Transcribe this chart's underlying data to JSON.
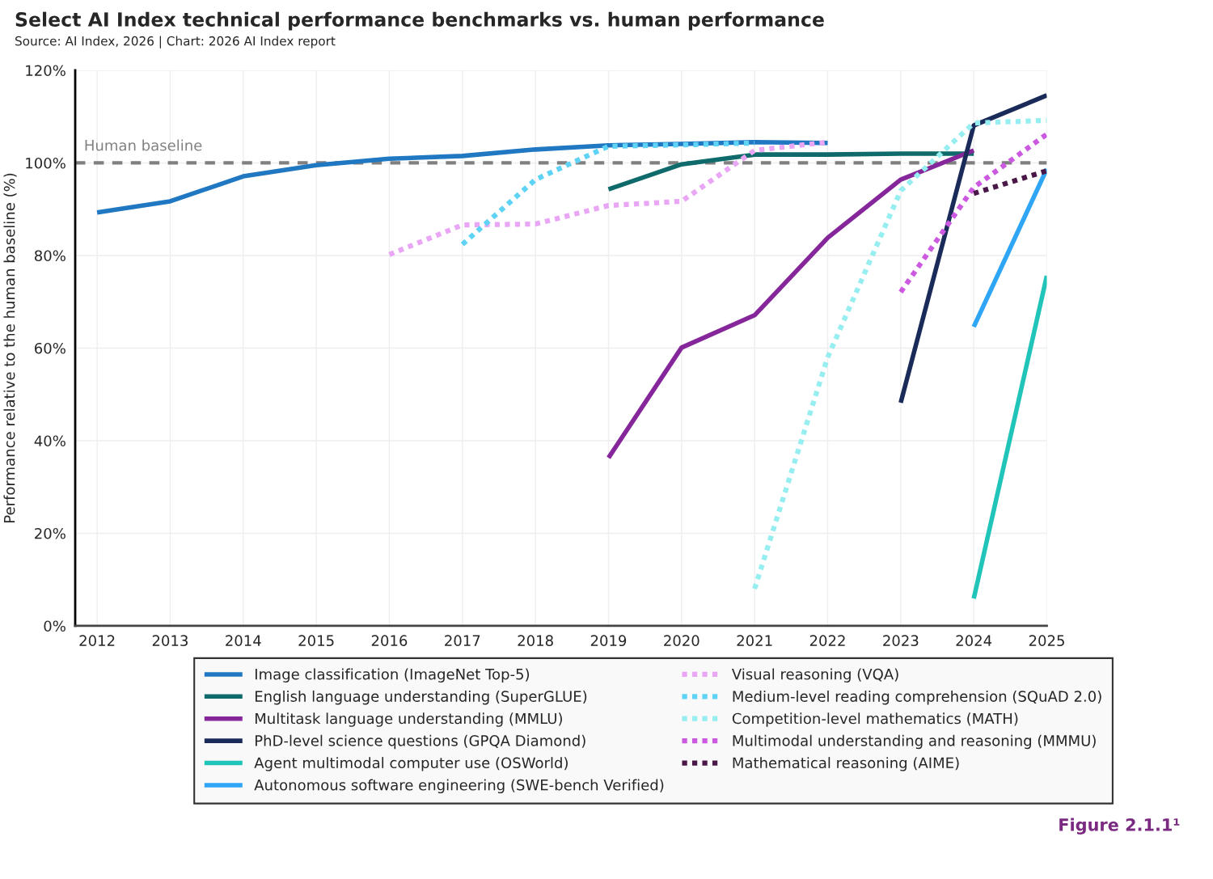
{
  "chart_data": {
    "type": "line",
    "title": "Select AI Index technical performance benchmarks vs. human performance",
    "subtitle": "Source: AI Index, 2026 | Chart: 2026 AI Index report",
    "ylabel": "Performance relative to the human baseline (%)",
    "x": [
      2012,
      2013,
      2014,
      2015,
      2016,
      2017,
      2018,
      2019,
      2020,
      2021,
      2022,
      2023,
      2024,
      2025
    ],
    "xlim": [
      2011.7,
      2025
    ],
    "xticks": [
      2012,
      2013,
      2014,
      2015,
      2016,
      2017,
      2018,
      2019,
      2020,
      2021,
      2022,
      2023,
      2024,
      2025
    ],
    "ylim": [
      0,
      120
    ],
    "yticks": [
      {
        "value": 0,
        "label": "0%"
      },
      {
        "value": 20,
        "label": "20%"
      },
      {
        "value": 40,
        "label": "40%"
      },
      {
        "value": 60,
        "label": "60%"
      },
      {
        "value": 80,
        "label": "80%"
      },
      {
        "value": 100,
        "label": "100%"
      },
      {
        "value": 120,
        "label": "120%"
      }
    ],
    "grid": true,
    "legend": "bottom",
    "marker": "none",
    "ref_lines": [
      {
        "axis": "y",
        "value": 100,
        "label": "Human baseline",
        "color": "#808080",
        "line_style": "dashed"
      }
    ],
    "annotations": [
      "Figure 2.1.1¹"
    ],
    "series": [
      {
        "name": "Image classification (ImageNet Top-5)",
        "color": "#1f78c1",
        "line_style": "solid",
        "values": [
          89.3,
          91.7,
          97.1,
          99.5,
          100.9,
          101.5,
          102.9,
          103.8,
          104.1,
          104.5,
          104.3,
          null,
          null,
          null
        ]
      },
      {
        "name": "English language understanding (SuperGLUE)",
        "color": "#0f6b6b",
        "line_style": "solid",
        "values": [
          null,
          null,
          null,
          null,
          null,
          null,
          null,
          94.3,
          99.7,
          101.8,
          101.8,
          102,
          102,
          null
        ]
      },
      {
        "name": "Multitask language understanding (MMLU)",
        "color": "#85279a",
        "line_style": "solid",
        "values": [
          null,
          null,
          null,
          null,
          null,
          null,
          null,
          36.3,
          60.1,
          67.1,
          83.8,
          96.4,
          102.7,
          null
        ]
      },
      {
        "name": "PhD-level science questions (GPQA Diamond)",
        "color": "#1a2b5a",
        "line_style": "solid",
        "values": [
          null,
          null,
          null,
          null,
          null,
          null,
          null,
          null,
          null,
          null,
          null,
          48.2,
          108.1,
          114.6
        ]
      },
      {
        "name": "Agent multimodal computer use (OSWorld)",
        "color": "#20c4b8",
        "line_style": "solid",
        "values": [
          null,
          null,
          null,
          null,
          null,
          null,
          null,
          null,
          null,
          null,
          null,
          null,
          5.9,
          75.6
        ]
      },
      {
        "name": "Autonomous software engineering (SWE-bench Verified)",
        "color": "#2ea6f5",
        "line_style": "solid",
        "values": [
          null,
          null,
          null,
          null,
          null,
          null,
          null,
          null,
          null,
          null,
          null,
          null,
          64.6,
          98.7
        ]
      },
      {
        "name": "Visual reasoning (VQA)",
        "color": "#e9a6f5",
        "line_style": "dotted",
        "values": [
          null,
          null,
          null,
          null,
          80.2,
          86.6,
          86.8,
          90.8,
          91.7,
          102.7,
          104.5,
          null,
          null,
          null
        ]
      },
      {
        "name": "Medium-level reading comprehension (SQuAD 2.0)",
        "color": "#5fd3f5",
        "line_style": "dotted",
        "values": [
          null,
          null,
          null,
          null,
          null,
          82.4,
          96.4,
          103.6,
          103.9,
          104.3,
          null,
          null,
          null,
          null
        ]
      },
      {
        "name": "Competition-level mathematics (MATH)",
        "color": "#96eef0",
        "line_style": "dotted",
        "values": [
          null,
          null,
          null,
          null,
          null,
          null,
          null,
          null,
          null,
          8.0,
          58,
          94,
          108.6,
          109.2
        ]
      },
      {
        "name": "Multimodal understanding and reasoning (MMMU)",
        "color": "#cc5ae0",
        "line_style": "dotted",
        "values": [
          null,
          null,
          null,
          null,
          null,
          null,
          null,
          null,
          null,
          null,
          null,
          72.1,
          94.7,
          106.2
        ]
      },
      {
        "name": "Mathematical reasoning (AIME)",
        "color": "#4a1848",
        "line_style": "dotted",
        "values": [
          null,
          null,
          null,
          null,
          null,
          null,
          null,
          null,
          null,
          null,
          null,
          null,
          93.4,
          98.3
        ]
      }
    ]
  }
}
